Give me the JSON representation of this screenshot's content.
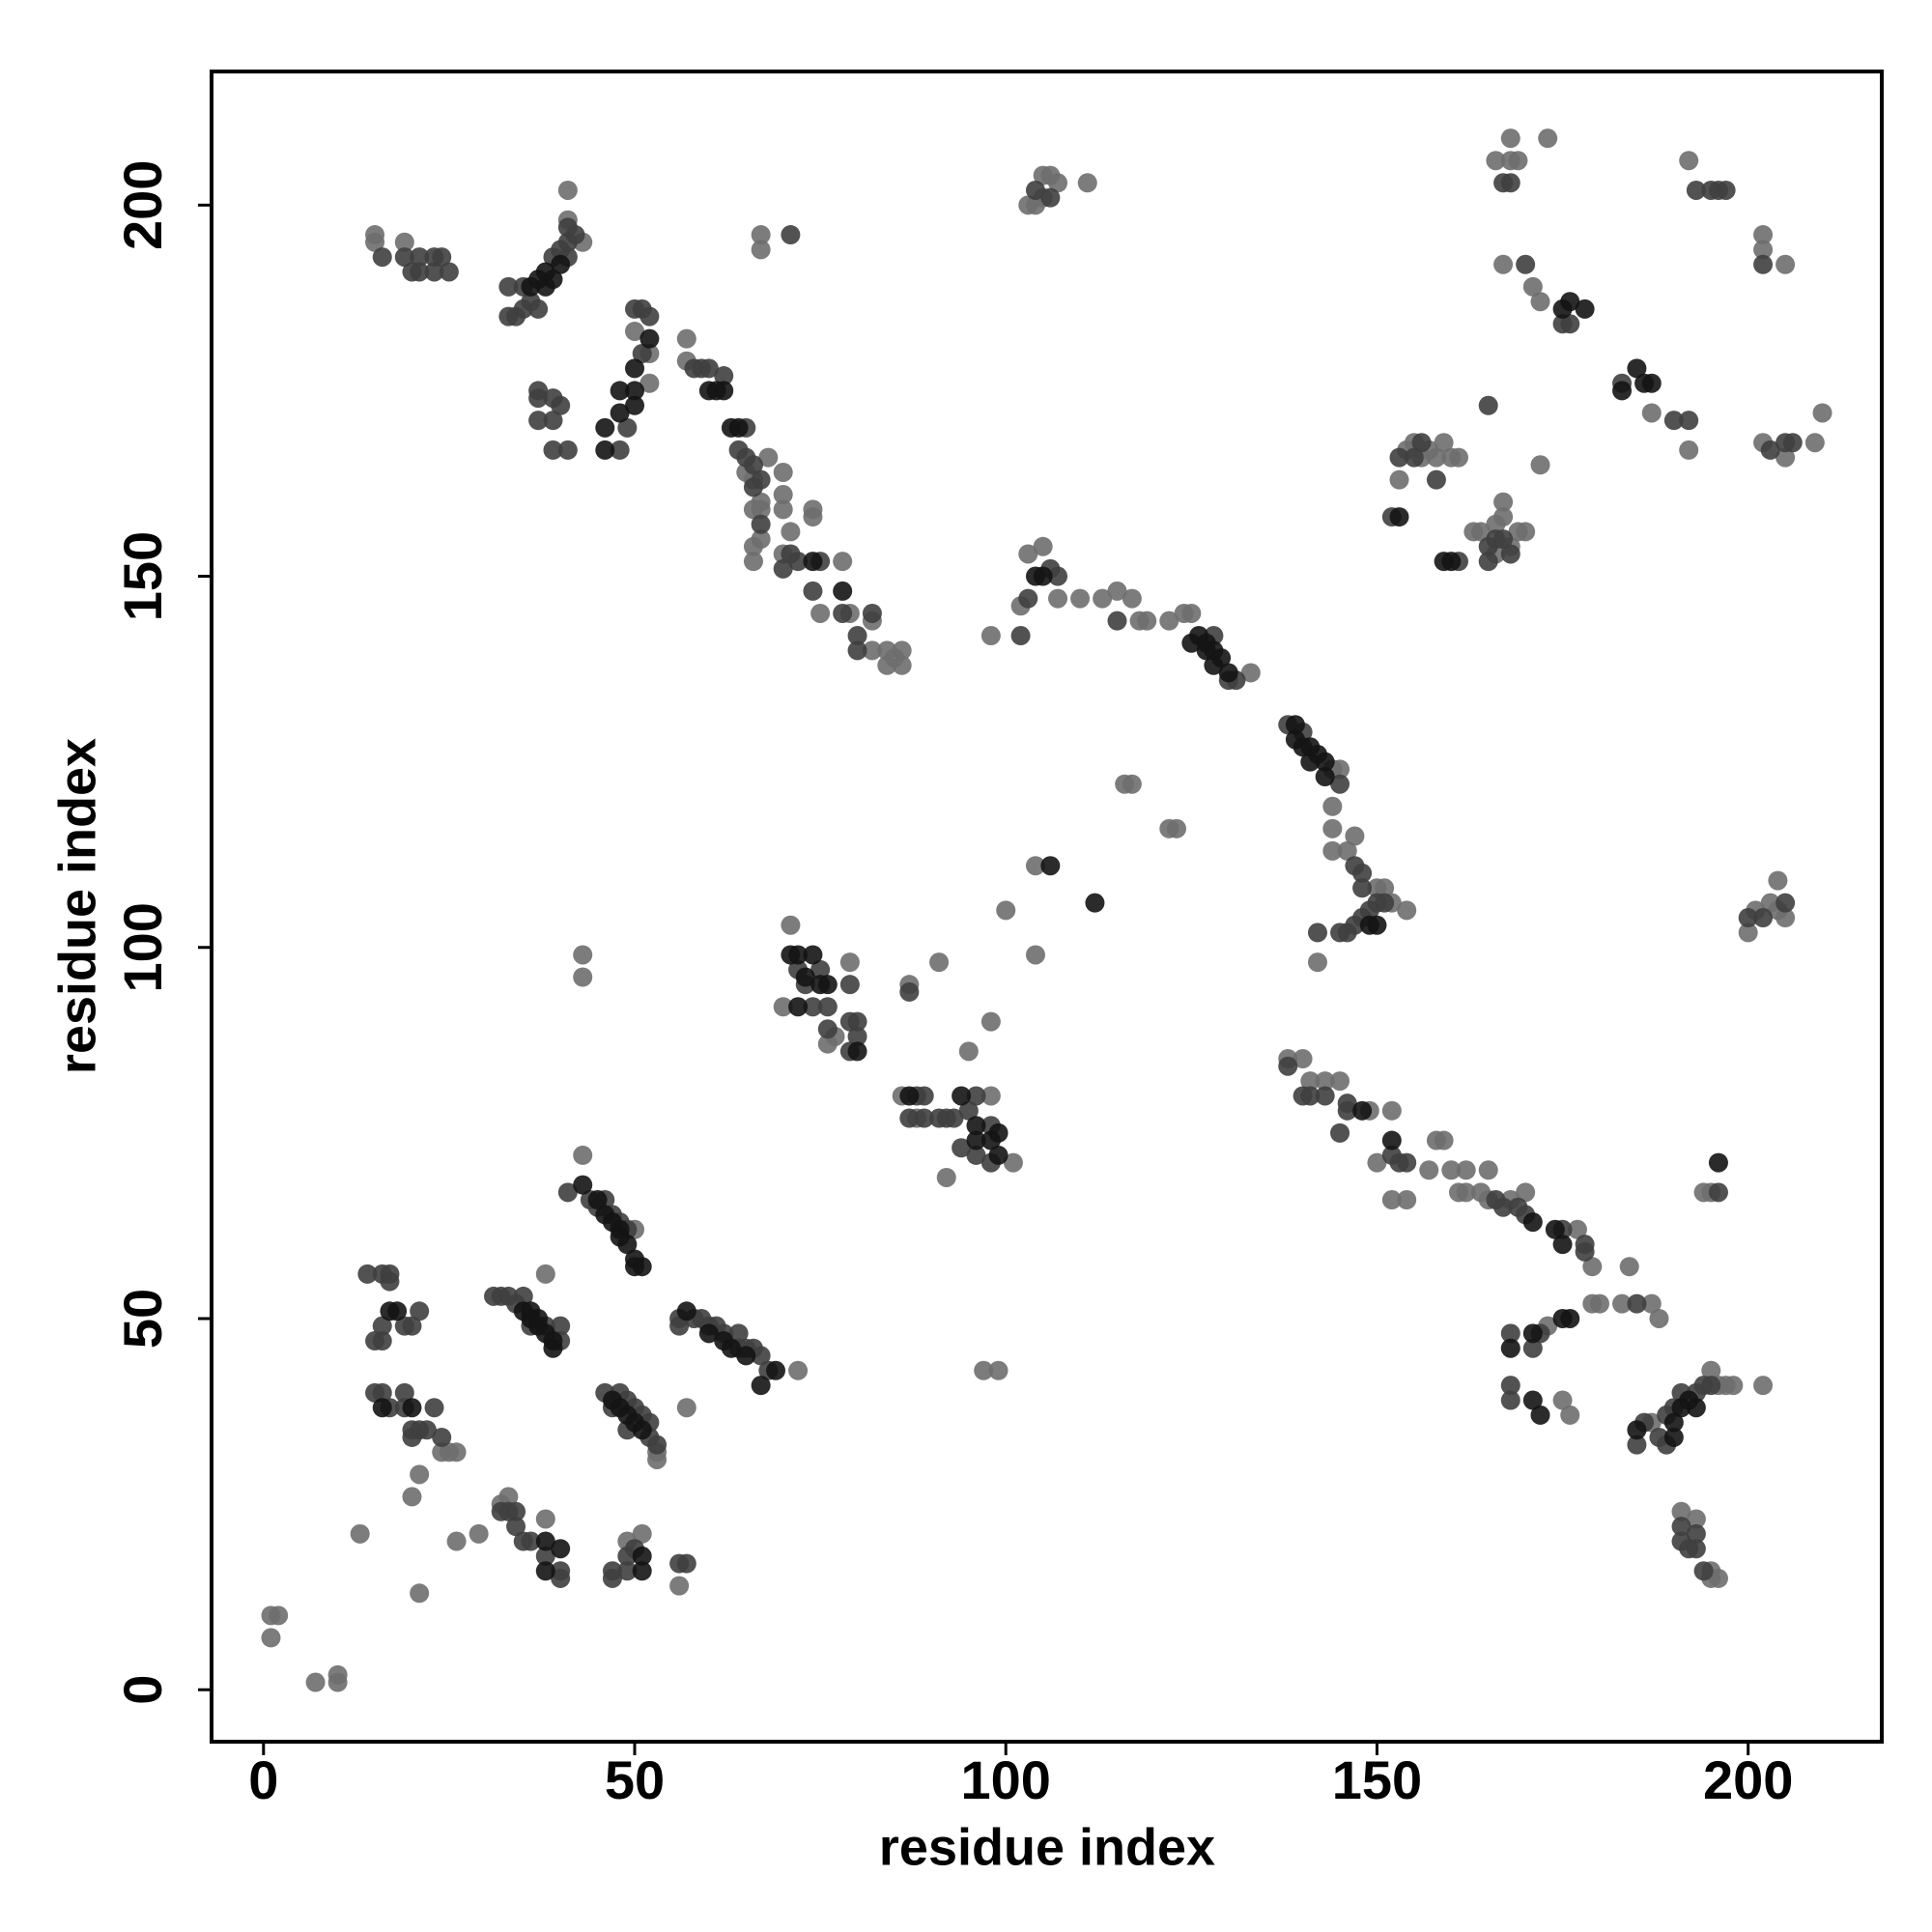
{
  "chart_data": {
    "type": "scatter",
    "xlabel": "residue index",
    "ylabel": "residue index",
    "xlim": [
      -7,
      218
    ],
    "ylim": [
      -7,
      218
    ],
    "xticks": [
      0,
      50,
      100,
      150,
      200
    ],
    "yticks": [
      0,
      50,
      100,
      150,
      200
    ],
    "series": [
      {
        "color": "#6e6e6e",
        "x": [
          1,
          2,
          1,
          7,
          10,
          10,
          13,
          15,
          15,
          19,
          21,
          26,
          29,
          20,
          21,
          24,
          25,
          26,
          32,
          33,
          38,
          38,
          43,
          43,
          43,
          41,
          41,
          43,
          50,
          52,
          52,
          57,
          49,
          51,
          56,
          57,
          53,
          53,
          50,
          72,
          71,
          70,
          79,
          76,
          77,
          87,
          91,
          86,
          88,
          92,
          95,
          98,
          98,
          97,
          99,
          101,
          100,
          104,
          104,
          98,
          102,
          103,
          105,
          107,
          110,
          113,
          115,
          117,
          118,
          119,
          122,
          116,
          117,
          122,
          123,
          103,
          104,
          105,
          105,
          106,
          107,
          111,
          124,
          125,
          133,
          144,
          145,
          144,
          144,
          144,
          146,
          147,
          150,
          151,
          152,
          154,
          142,
          138,
          140,
          141,
          143,
          145,
          149,
          152,
          150,
          152,
          154,
          157,
          158,
          159,
          160,
          162,
          161,
          162,
          165,
          164,
          165,
          168,
          170,
          177,
          179,
          184,
          179,
          180,
          183,
          187,
          188,
          173,
          175,
          176,
          187,
          195,
          196,
          197,
          198,
          202,
          191,
          193,
          195,
          195,
          196,
          194,
          195,
          200,
          201,
          203,
          204,
          205,
          204,
          153,
          154,
          155,
          156,
          157,
          158,
          159,
          160,
          161,
          163,
          164,
          166,
          167,
          167,
          168,
          169,
          170,
          166,
          172,
          168,
          168,
          169,
          173,
          166,
          192,
          202,
          202,
          205,
          202,
          205,
          209,
          210,
          167,
          171,
          172,
          187,
          192,
          67,
          67,
          57,
          65,
          66,
          67,
          67,
          66,
          66,
          67,
          66,
          68,
          70,
          70,
          70,
          71,
          70,
          74,
          74,
          78,
          75,
          79,
          82,
          82,
          84,
          84,
          85,
          86,
          86
        ],
        "values": [
          10,
          10,
          7,
          1,
          1,
          2,
          21,
          196,
          195,
          195,
          13,
          20,
          21,
          26,
          29,
          32,
          32,
          32,
          25,
          26,
          23,
          56,
          72,
          99,
          96,
          202,
          198,
          195,
          183,
          180,
          176,
          179,
          20,
          21,
          14,
          38,
          31,
          32,
          62,
          43,
          103,
          92,
          98,
          87,
          88,
          95,
          98,
          80,
          77,
          69,
          86,
          80,
          90,
          43,
          43,
          71,
          105,
          111,
          99,
          142,
          146,
          153,
          154,
          147,
          147,
          147,
          148,
          147,
          144,
          144,
          144,
          122,
          122,
          116,
          116,
          200,
          200,
          201,
          204,
          204,
          203,
          203,
          145,
          145,
          137,
          124,
          124,
          119,
          116,
          113,
          113,
          115,
          108,
          108,
          106,
          105,
          98,
          85,
          85,
          82,
          82,
          82,
          78,
          78,
          71,
          66,
          66,
          70,
          74,
          74,
          70,
          70,
          67,
          67,
          70,
          67,
          66,
          66,
          67,
          62,
          57,
          57,
          52,
          52,
          52,
          52,
          50,
          49,
          39,
          37,
          36,
          43,
          41,
          41,
          41,
          41,
          24,
          23,
          16,
          15,
          15,
          67,
          67,
          102,
          105,
          106,
          105,
          104,
          109,
          163,
          167,
          168,
          166,
          167,
          166,
          168,
          166,
          166,
          156,
          156,
          157,
          160,
          158,
          154,
          156,
          156,
          153,
          165,
          209,
          206,
          206,
          209,
          206,
          206,
          196,
          194,
          192,
          168,
          166,
          168,
          172,
          192,
          189,
          187,
          172,
          167,
          196,
          194,
          182,
          164,
          163,
          160,
          159,
          159,
          154,
          155,
          152,
          166,
          164,
          161,
          159,
          156,
          153,
          159,
          158,
          152,
          145,
          145,
          144,
          140,
          140,
          138,
          139,
          140,
          138
        ]
      },
      {
        "color": "#3f3f3f",
        "x": [
          16,
          19,
          20,
          21,
          21,
          23,
          23,
          24,
          25,
          33,
          33,
          34,
          35,
          35,
          36,
          37,
          39,
          40,
          41,
          41,
          41,
          42,
          37,
          37,
          37,
          39,
          39,
          39,
          41,
          40,
          48,
          49,
          50,
          51,
          51,
          52,
          58,
          59,
          60,
          62,
          64,
          65,
          65,
          66,
          67,
          66,
          67,
          71,
          72,
          70,
          74,
          75,
          78,
          80,
          80,
          82,
          71,
          14,
          16,
          17,
          17,
          15,
          16,
          16,
          20,
          19,
          21,
          15,
          16,
          17,
          19,
          19,
          21,
          20,
          20,
          23,
          22,
          24,
          31,
          32,
          33,
          34,
          35,
          38,
          40,
          40,
          36,
          32,
          33,
          34,
          34,
          35,
          36,
          38,
          40,
          40,
          41,
          44,
          45,
          46,
          47,
          49,
          48,
          46,
          47,
          48,
          49,
          50,
          51,
          52,
          52,
          53,
          49,
          47,
          47,
          49,
          49,
          50,
          56,
          57,
          56,
          56,
          58,
          59,
          60,
          61,
          62,
          64,
          64,
          65,
          66,
          67,
          68,
          72,
          73,
          74,
          75,
          76,
          76,
          79,
          79,
          79,
          80,
          80,
          87,
          88,
          89,
          87,
          89,
          91,
          92,
          93,
          96,
          95,
          96,
          98,
          98,
          94,
          102,
          103,
          106,
          107,
          115,
          106,
          104,
          131,
          130,
          128,
          138,
          140,
          145,
          147,
          148,
          148,
          150,
          151,
          149,
          148,
          147,
          146,
          145,
          142,
          138,
          140,
          141,
          143,
          146,
          146,
          145,
          152,
          153,
          154,
          166,
          167,
          169,
          170,
          175,
          178,
          178,
          185,
          172,
          168,
          171,
          168,
          168,
          185,
          186,
          189,
          190,
          191,
          193,
          194,
          195,
          188,
          189,
          191,
          191,
          192,
          193,
          193,
          194,
          196,
          200,
          202,
          205,
          152,
          153,
          155,
          156,
          158,
          161,
          165,
          165,
          166,
          167,
          168,
          165,
          170,
          175,
          176,
          183,
          190,
          192,
          167,
          168,
          193,
          195,
          196,
          197,
          202,
          203,
          205,
          206
        ],
        "values": [
          193,
          193,
          191,
          191,
          193,
          193,
          191,
          193,
          191,
          189,
          185,
          185,
          189,
          186,
          187,
          186,
          193,
          194,
          195,
          193,
          197,
          196,
          175,
          174,
          171,
          174,
          171,
          167,
          167,
          173,
          167,
          170,
          186,
          186,
          180,
          185,
          178,
          178,
          178,
          177,
          167,
          170,
          166,
          165,
          163,
          162,
          157,
          153,
          152,
          151,
          148,
          152,
          145,
          142,
          140,
          145,
          196,
          56,
          56,
          56,
          55,
          47,
          47,
          49,
          49,
          49,
          51,
          40,
          40,
          38,
          40,
          38,
          35,
          35,
          34,
          38,
          35,
          34,
          53,
          53,
          53,
          52,
          53,
          49,
          47,
          49,
          49,
          24,
          24,
          24,
          22,
          20,
          20,
          18,
          16,
          15,
          67,
          66,
          65,
          66,
          64,
          62,
          63,
          40,
          38,
          40,
          39,
          38,
          37,
          34,
          36,
          33,
          35,
          15,
          16,
          18,
          16,
          19,
          17,
          17,
          50,
          49,
          50,
          50,
          49,
          49,
          48,
          48,
          46,
          46,
          46,
          45,
          43,
          97,
          95,
          92,
          97,
          92,
          89,
          95,
          90,
          86,
          88,
          90,
          94,
          80,
          80,
          77,
          77,
          77,
          77,
          77,
          80,
          78,
          72,
          76,
          71,
          73,
          142,
          147,
          151,
          150,
          144,
          201,
          202,
          136,
          136,
          142,
          130,
          129,
          122,
          111,
          110,
          108,
          106,
          106,
          105,
          104,
          103,
          102,
          102,
          102,
          84,
          80,
          80,
          80,
          79,
          78,
          75,
          72,
          71,
          71,
          66,
          65,
          65,
          64,
          62,
          60,
          59,
          52,
          48,
          48,
          46,
          41,
          39,
          33,
          36,
          37,
          38,
          40,
          40,
          41,
          41,
          34,
          33,
          22,
          20,
          19,
          21,
          19,
          16,
          67,
          104,
          104,
          106,
          158,
          166,
          166,
          168,
          163,
          152,
          154,
          152,
          155,
          155,
          153,
          173,
          192,
          184,
          184,
          176,
          171,
          171,
          203,
          203,
          202,
          202,
          202,
          202,
          192,
          167,
          168,
          168
        ]
      },
      {
        "color": "#141414",
        "x": [
          38,
          38,
          39,
          37,
          40,
          36,
          46,
          46,
          48,
          48,
          50,
          50,
          50,
          52,
          60,
          61,
          62,
          63,
          64,
          74,
          78,
          71,
          72,
          73,
          72,
          74,
          75,
          76,
          80,
          87,
          94,
          96,
          96,
          98,
          99,
          99,
          104,
          105,
          106,
          112,
          125,
          126,
          127,
          127,
          128,
          128,
          129,
          130,
          139,
          139,
          140,
          141,
          141,
          142,
          143,
          143,
          150,
          149,
          148,
          152,
          171,
          174,
          175,
          176,
          175,
          168,
          171,
          172,
          171,
          190,
          191,
          192,
          193,
          175,
          176,
          178,
          183,
          185,
          186,
          187,
          153,
          160,
          159,
          35,
          36,
          36,
          37,
          37,
          38,
          39,
          39,
          43,
          45,
          46,
          47,
          48,
          48,
          49,
          50,
          50,
          51,
          47,
          48,
          49,
          50,
          51,
          51,
          51,
          57,
          60,
          62,
          63,
          65,
          67,
          69,
          17,
          18,
          16,
          20,
          38,
          38,
          40,
          185,
          190,
          196
        ],
        "values": [
          191,
          189,
          190,
          190,
          192,
          189,
          170,
          167,
          172,
          175,
          173,
          175,
          178,
          182,
          175,
          175,
          175,
          170,
          170,
          152,
          148,
          99,
          99,
          96,
          92,
          99,
          95,
          95,
          86,
          80,
          80,
          76,
          74,
          74,
          75,
          72,
          150,
          150,
          111,
          106,
          141,
          142,
          141,
          140,
          140,
          138,
          139,
          137,
          130,
          128,
          127,
          127,
          125,
          126,
          125,
          123,
          103,
          103,
          78,
          74,
          63,
          62,
          60,
          50,
          50,
          46,
          48,
          37,
          39,
          36,
          38,
          39,
          38,
          186,
          187,
          186,
          175,
          178,
          176,
          176,
          158,
          152,
          152,
          51,
          51,
          50,
          50,
          49,
          48,
          47,
          46,
          68,
          66,
          64,
          63,
          62,
          61,
          60,
          58,
          57,
          57,
          39,
          38,
          37,
          36,
          35,
          18,
          16,
          51,
          48,
          47,
          46,
          45,
          41,
          43,
          51,
          51,
          38,
          38,
          20,
          16,
          19,
          35,
          34,
          71
        ]
      }
    ]
  }
}
